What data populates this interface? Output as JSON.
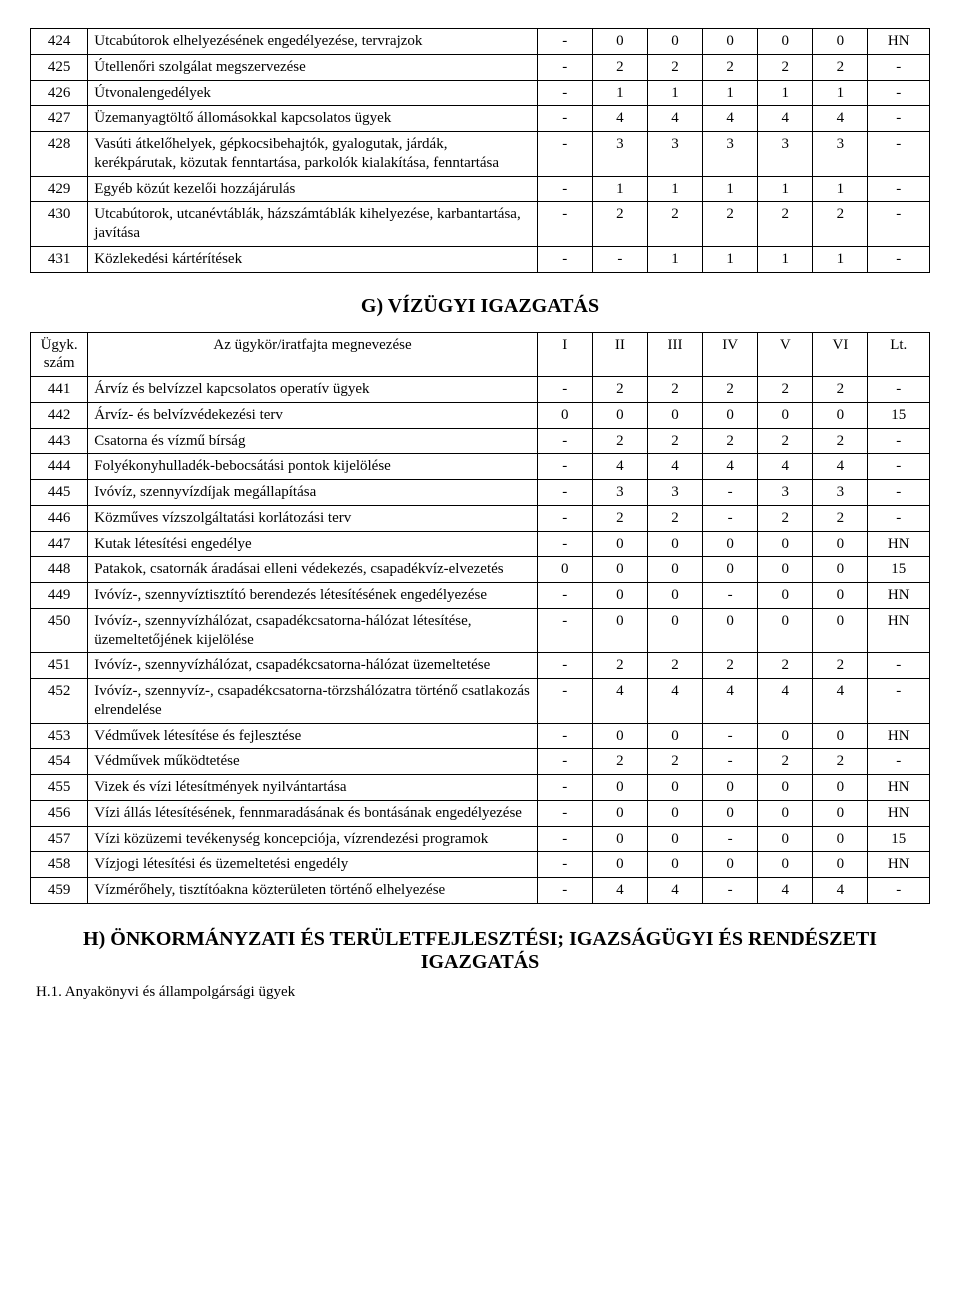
{
  "table1": {
    "rows": [
      {
        "n": "424",
        "d": "Utcabútorok elhelyezésének engedélyezése, tervrajzok",
        "v": [
          "-",
          "0",
          "0",
          "0",
          "0",
          "0",
          "HN"
        ]
      },
      {
        "n": "425",
        "d": "Útellenőri szolgálat megszervezése",
        "v": [
          "-",
          "2",
          "2",
          "2",
          "2",
          "2",
          "-"
        ]
      },
      {
        "n": "426",
        "d": "Útvonalengedélyek",
        "v": [
          "-",
          "1",
          "1",
          "1",
          "1",
          "1",
          "-"
        ]
      },
      {
        "n": "427",
        "d": "Üzemanyagtöltő állomásokkal kapcsolatos ügyek",
        "v": [
          "-",
          "4",
          "4",
          "4",
          "4",
          "4",
          "-"
        ]
      },
      {
        "n": "428",
        "d": "Vasúti átkelőhelyek, gépkocsibehajtók, gyalogutak, járdák, kerékpárutak, közutak fenntartása, parkolók kialakítása, fenntartása",
        "v": [
          "-",
          "3",
          "3",
          "3",
          "3",
          "3",
          "-"
        ]
      },
      {
        "n": "429",
        "d": "Egyéb közút kezelői hozzájárulás",
        "v": [
          "-",
          "1",
          "1",
          "1",
          "1",
          "1",
          "-"
        ]
      },
      {
        "n": "430",
        "d": "Utcabútorok, utcanévtáblák, házszámtáblák kihelyezése, karbantartása, javítása",
        "v": [
          "-",
          "2",
          "2",
          "2",
          "2",
          "2",
          "-"
        ]
      },
      {
        "n": "431",
        "d": "Közlekedési kártérítések",
        "v": [
          "-",
          "-",
          "1",
          "1",
          "1",
          "1",
          "-"
        ]
      }
    ]
  },
  "sectionG": "G) VÍZÜGYI IGAZGATÁS",
  "table2": {
    "header": {
      "num": "Ügyk. szám",
      "desc": "Az ügykör/iratfajta megnevezése",
      "cols": [
        "I",
        "II",
        "III",
        "IV",
        "V",
        "VI",
        "Lt."
      ]
    },
    "rows": [
      {
        "n": "441",
        "d": "Árvíz és belvízzel kapcsolatos operatív ügyek",
        "v": [
          "-",
          "2",
          "2",
          "2",
          "2",
          "2",
          "-"
        ]
      },
      {
        "n": "442",
        "d": "Árvíz- és belvízvédekezési terv",
        "v": [
          "0",
          "0",
          "0",
          "0",
          "0",
          "0",
          "15"
        ]
      },
      {
        "n": "443",
        "d": "Csatorna és vízmű bírság",
        "v": [
          "-",
          "2",
          "2",
          "2",
          "2",
          "2",
          "-"
        ]
      },
      {
        "n": "444",
        "d": "Folyékonyhulladék-bebocsátási pontok kijelölése",
        "v": [
          "-",
          "4",
          "4",
          "4",
          "4",
          "4",
          "-"
        ]
      },
      {
        "n": "445",
        "d": "Ivóvíz, szennyvízdíjak megállapítása",
        "v": [
          "-",
          "3",
          "3",
          "-",
          "3",
          "3",
          "-"
        ]
      },
      {
        "n": "446",
        "d": "Közműves vízszolgáltatási korlátozási terv",
        "v": [
          "-",
          "2",
          "2",
          "-",
          "2",
          "2",
          "-"
        ]
      },
      {
        "n": "447",
        "d": "Kutak létesítési engedélye",
        "v": [
          "-",
          "0",
          "0",
          "0",
          "0",
          "0",
          "HN"
        ]
      },
      {
        "n": "448",
        "d": "Patakok, csatornák áradásai elleni védekezés, csapadékvíz-elvezetés",
        "v": [
          "0",
          "0",
          "0",
          "0",
          "0",
          "0",
          "15"
        ]
      },
      {
        "n": "449",
        "d": "Ivóvíz-, szennyvíztisztító berendezés létesítésének engedélyezése",
        "v": [
          "-",
          "0",
          "0",
          "-",
          "0",
          "0",
          "HN"
        ]
      },
      {
        "n": "450",
        "d": "Ivóvíz-, szennyvízhálózat, csapadékcsatorna-hálózat létesítése, üzemeltetőjének kijelölése",
        "v": [
          "-",
          "0",
          "0",
          "0",
          "0",
          "0",
          "HN"
        ]
      },
      {
        "n": "451",
        "d": "Ivóvíz-, szennyvízhálózat, csapadékcsatorna-hálózat üzemeltetése",
        "v": [
          "-",
          "2",
          "2",
          "2",
          "2",
          "2",
          "-"
        ]
      },
      {
        "n": "452",
        "d": "Ivóvíz-, szennyvíz-, csapadékcsatorna-törzshálózatra történő csatlakozás elrendelése",
        "v": [
          "-",
          "4",
          "4",
          "4",
          "4",
          "4",
          "-"
        ]
      },
      {
        "n": "453",
        "d": "Védművek létesítése és fejlesztése",
        "v": [
          "-",
          "0",
          "0",
          "-",
          "0",
          "0",
          "HN"
        ]
      },
      {
        "n": "454",
        "d": "Védművek működtetése",
        "v": [
          "-",
          "2",
          "2",
          "-",
          "2",
          "2",
          "-"
        ]
      },
      {
        "n": "455",
        "d": "Vizek és vízi létesítmények nyilvántartása",
        "v": [
          "-",
          "0",
          "0",
          "0",
          "0",
          "0",
          "HN"
        ]
      },
      {
        "n": "456",
        "d": "Vízi állás létesítésének, fennmaradásának és bontásának engedélyezése",
        "v": [
          "-",
          "0",
          "0",
          "0",
          "0",
          "0",
          "HN"
        ]
      },
      {
        "n": "457",
        "d": "Vízi közüzemi tevékenység koncepciója, vízrendezési programok",
        "v": [
          "-",
          "0",
          "0",
          "-",
          "0",
          "0",
          "15"
        ]
      },
      {
        "n": "458",
        "d": "Vízjogi létesítési és üzemeltetési engedély",
        "v": [
          "-",
          "0",
          "0",
          "0",
          "0",
          "0",
          "HN"
        ]
      },
      {
        "n": "459",
        "d": "Vízmérőhely, tisztítóakna közterületen történő elhelyezése",
        "v": [
          "-",
          "4",
          "4",
          "-",
          "4",
          "4",
          "-"
        ]
      }
    ]
  },
  "sectionH": "H) ÖNKORMÁNYZATI ÉS TERÜLETFEJLESZTÉSI; IGAZSÁGÜGYI ÉS RENDÉSZETI IGAZGATÁS",
  "sub": "H.1. Anyakönyvi és állampolgársági ügyek"
}
